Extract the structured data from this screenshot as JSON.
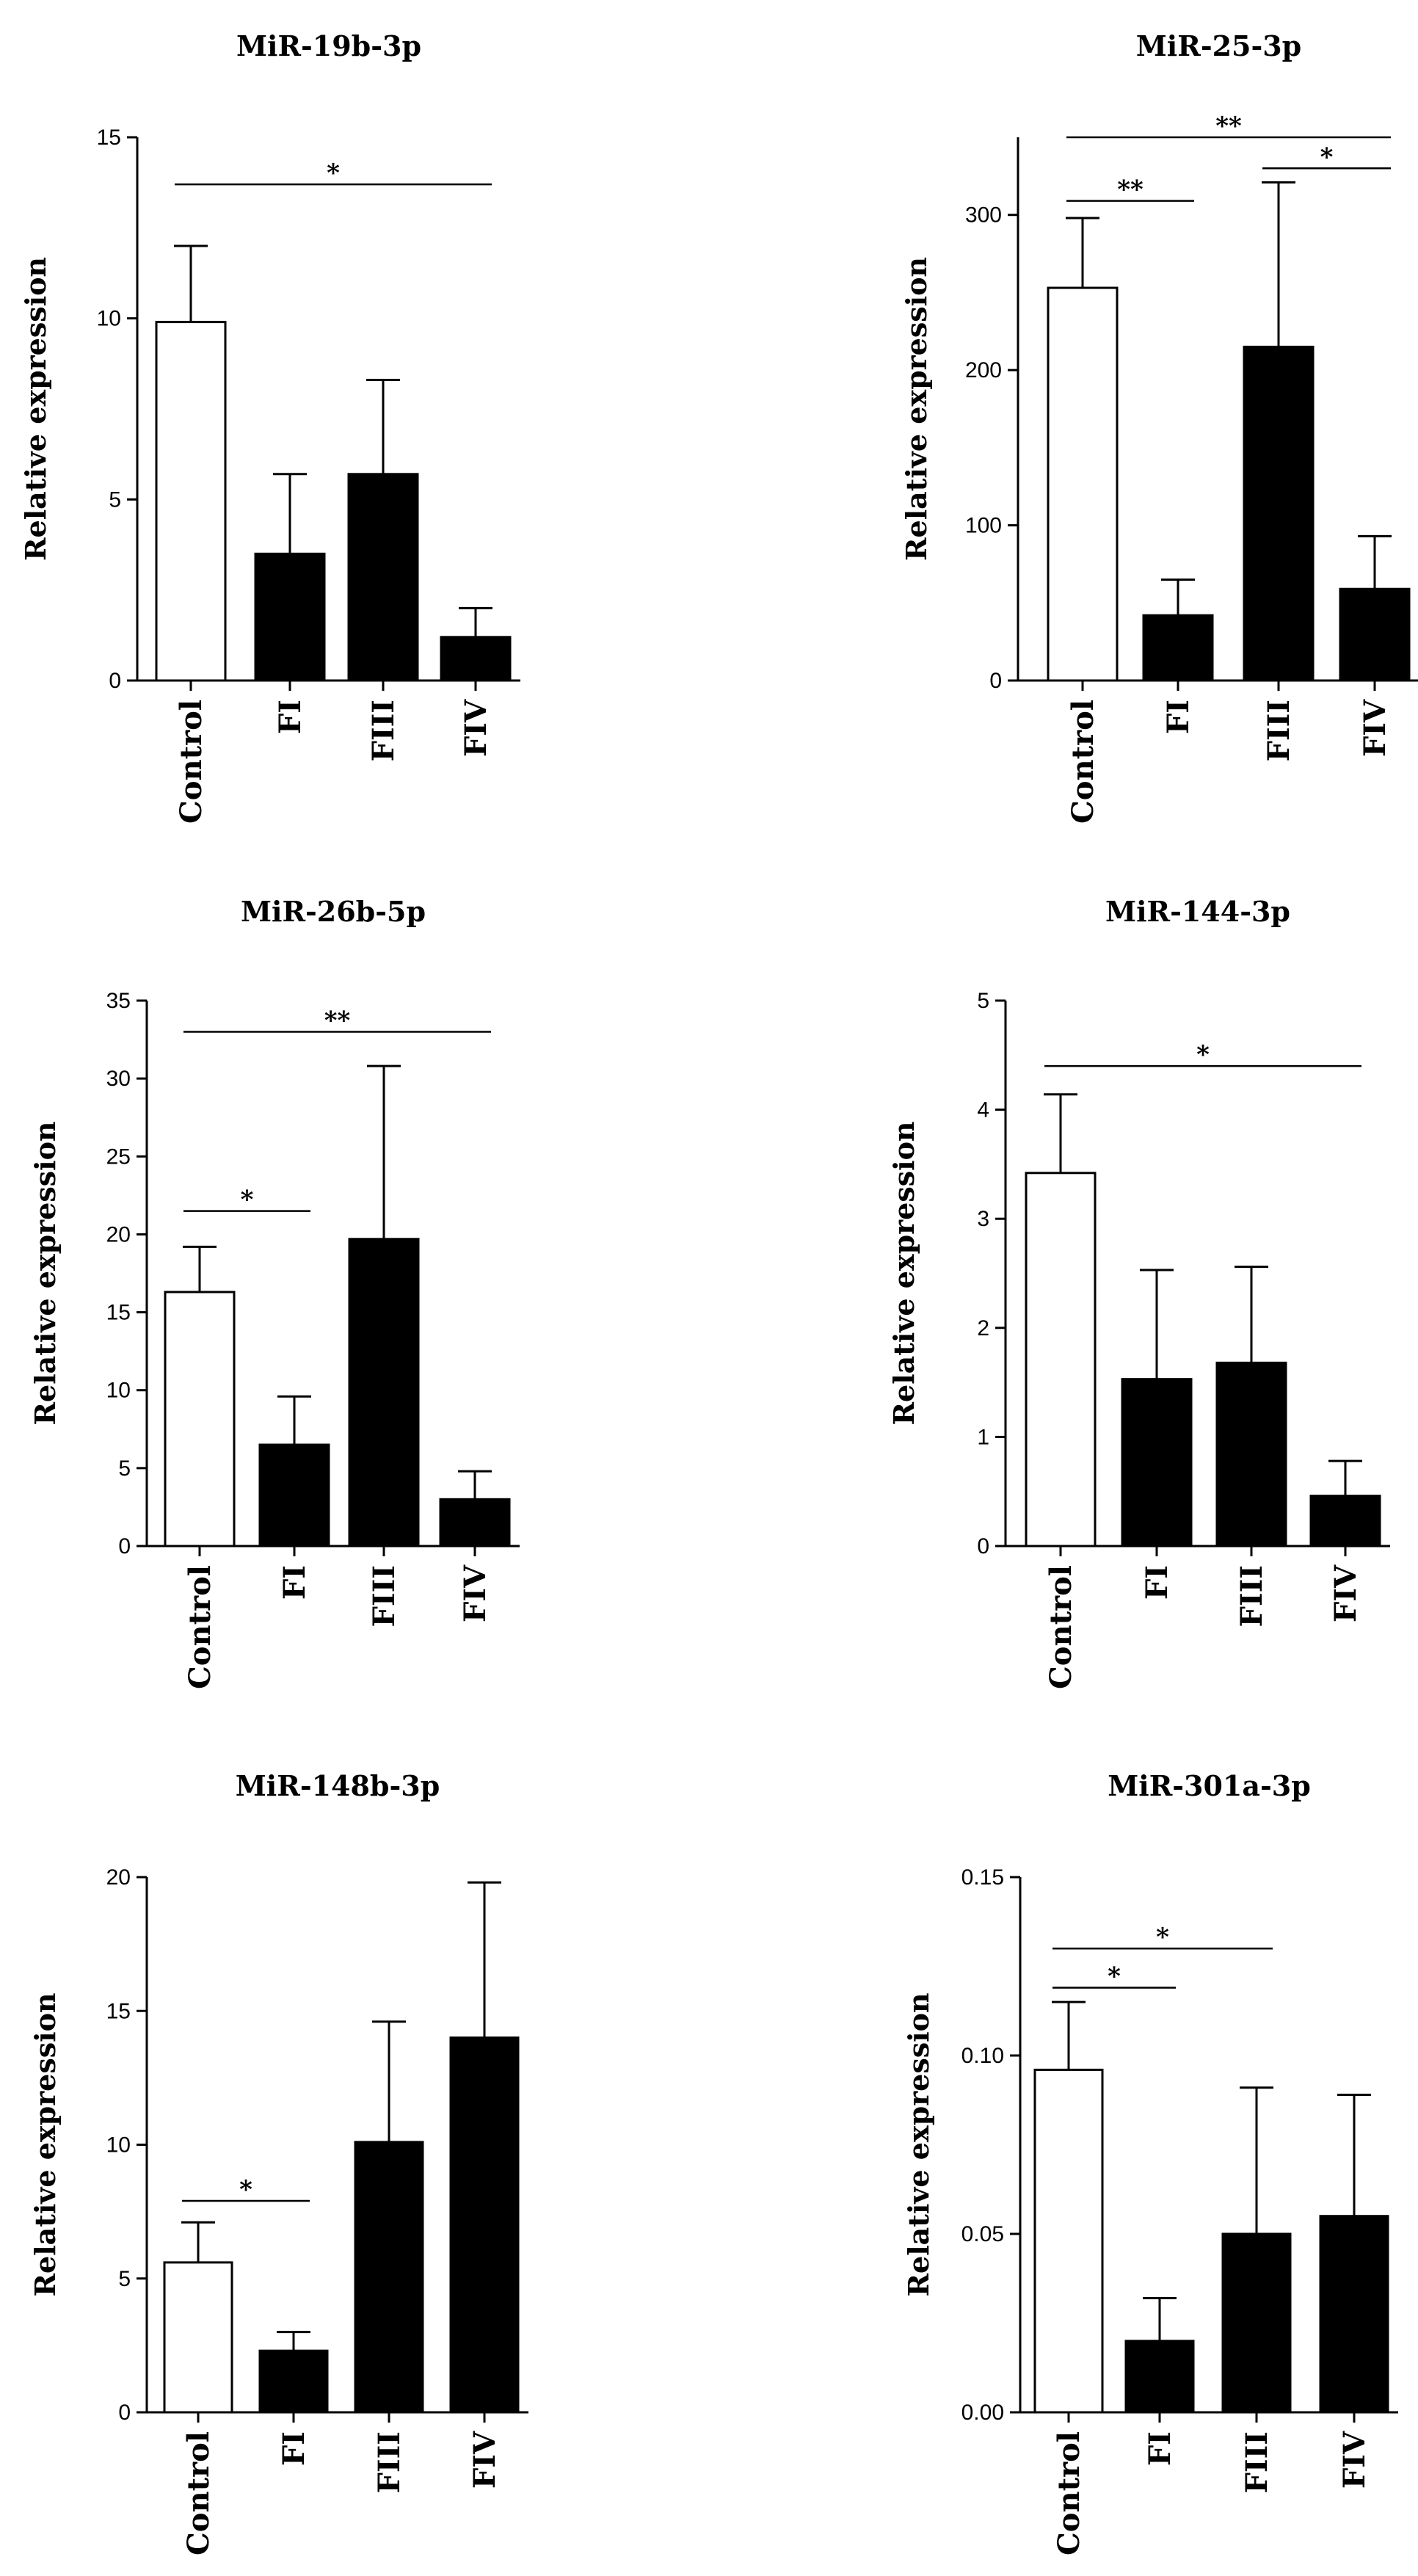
{
  "chart_data": [
    {
      "type": "bar",
      "title": "MiR-19b-3p",
      "ylabel": "Relative expression",
      "xlabel": "",
      "categories": [
        "Control",
        "FI",
        "FIII",
        "FIV"
      ],
      "values": [
        9.9,
        3.5,
        5.7,
        1.2
      ],
      "errors": [
        2.1,
        2.2,
        2.6,
        0.8
      ],
      "fill": [
        "#ffffff",
        "#000000",
        "#000000",
        "#000000"
      ],
      "ylim": [
        0,
        15
      ],
      "yticks": [
        0,
        5,
        10,
        15
      ],
      "ytick_labels": [
        "0",
        "5",
        "10",
        "15"
      ],
      "significance": [
        {
          "from": 0,
          "to": 3,
          "y": 13.7,
          "label": "*"
        }
      ]
    },
    {
      "type": "bar",
      "title": "MiR-25-3p",
      "ylabel": "Relative expression",
      "xlabel": "",
      "categories": [
        "Control",
        "FI",
        "FIII",
        "FIV"
      ],
      "values": [
        253,
        42,
        215,
        59
      ],
      "errors": [
        45,
        23,
        106,
        34
      ],
      "fill": [
        "#ffffff",
        "#000000",
        "#000000",
        "#000000"
      ],
      "ylim": [
        0,
        350
      ],
      "yticks": [
        0,
        100,
        200,
        300
      ],
      "ytick_labels": [
        "0",
        "100",
        "200",
        "300"
      ],
      "significance": [
        {
          "from": 0,
          "to": 3,
          "y": 350,
          "label": "**"
        },
        {
          "from": 0,
          "to": 1,
          "y": 309,
          "label": "**"
        },
        {
          "from": 2,
          "to": 3,
          "y": 330,
          "label": "*"
        }
      ]
    },
    {
      "type": "bar",
      "title": "MiR-26b-5p",
      "ylabel": "Relative expression",
      "xlabel": "",
      "categories": [
        "Control",
        "FI",
        "FIII",
        "FIV"
      ],
      "values": [
        16.3,
        6.5,
        19.7,
        3.0
      ],
      "errors": [
        2.9,
        3.1,
        11.1,
        1.8
      ],
      "fill": [
        "#ffffff",
        "#000000",
        "#000000",
        "#000000"
      ],
      "ylim": [
        0,
        35
      ],
      "yticks": [
        0,
        5,
        10,
        15,
        20,
        25,
        30,
        35
      ],
      "ytick_labels": [
        "0",
        "5",
        "10",
        "15",
        "20",
        "25",
        "30",
        "35"
      ],
      "significance": [
        {
          "from": 0,
          "to": 3,
          "y": 33.0,
          "label": "**"
        },
        {
          "from": 0,
          "to": 1,
          "y": 21.5,
          "label": "*"
        }
      ]
    },
    {
      "type": "bar",
      "title": "MiR-144-3p",
      "ylabel": "Relative expression",
      "xlabel": "",
      "categories": [
        "Control",
        "FI",
        "FIII",
        "FIV"
      ],
      "values": [
        3.42,
        1.53,
        1.68,
        0.46
      ],
      "errors": [
        0.72,
        1.0,
        0.88,
        0.32
      ],
      "fill": [
        "#ffffff",
        "#000000",
        "#000000",
        "#000000"
      ],
      "ylim": [
        0,
        5
      ],
      "yticks": [
        0,
        1,
        2,
        3,
        4,
        5
      ],
      "ytick_labels": [
        "0",
        "1",
        "2",
        "3",
        "4",
        "5"
      ],
      "significance": [
        {
          "from": 0,
          "to": 3,
          "y": 4.4,
          "label": "*"
        }
      ]
    },
    {
      "type": "bar",
      "title": "MiR-148b-3p",
      "ylabel": "Relative expression",
      "xlabel": "",
      "categories": [
        "Control",
        "FI",
        "FIII",
        "FIV"
      ],
      "values": [
        5.6,
        2.3,
        10.1,
        14.0
      ],
      "errors": [
        1.5,
        0.7,
        4.5,
        5.8
      ],
      "fill": [
        "#ffffff",
        "#000000",
        "#000000",
        "#000000"
      ],
      "ylim": [
        0,
        20
      ],
      "yticks": [
        0,
        5,
        10,
        15,
        20
      ],
      "ytick_labels": [
        "0",
        "5",
        "10",
        "15",
        "20"
      ],
      "significance": [
        {
          "from": 0,
          "to": 1,
          "y": 7.9,
          "label": "*"
        }
      ]
    },
    {
      "type": "bar",
      "title": "MiR-301a-3p",
      "ylabel": "Relative expression",
      "xlabel": "",
      "categories": [
        "Control",
        "FI",
        "FIII",
        "FIV"
      ],
      "values": [
        0.096,
        0.02,
        0.05,
        0.055
      ],
      "errors": [
        0.019,
        0.012,
        0.041,
        0.034
      ],
      "fill": [
        "#ffffff",
        "#000000",
        "#000000",
        "#000000"
      ],
      "ylim": [
        0,
        0.15
      ],
      "yticks": [
        0,
        0.05,
        0.1,
        0.15
      ],
      "ytick_labels": [
        "0.00",
        "0.05",
        "0.10",
        "0.15"
      ],
      "significance": [
        {
          "from": 0,
          "to": 2,
          "y": 0.13,
          "label": "*"
        },
        {
          "from": 0,
          "to": 1,
          "y": 0.119,
          "label": "*"
        }
      ]
    }
  ]
}
